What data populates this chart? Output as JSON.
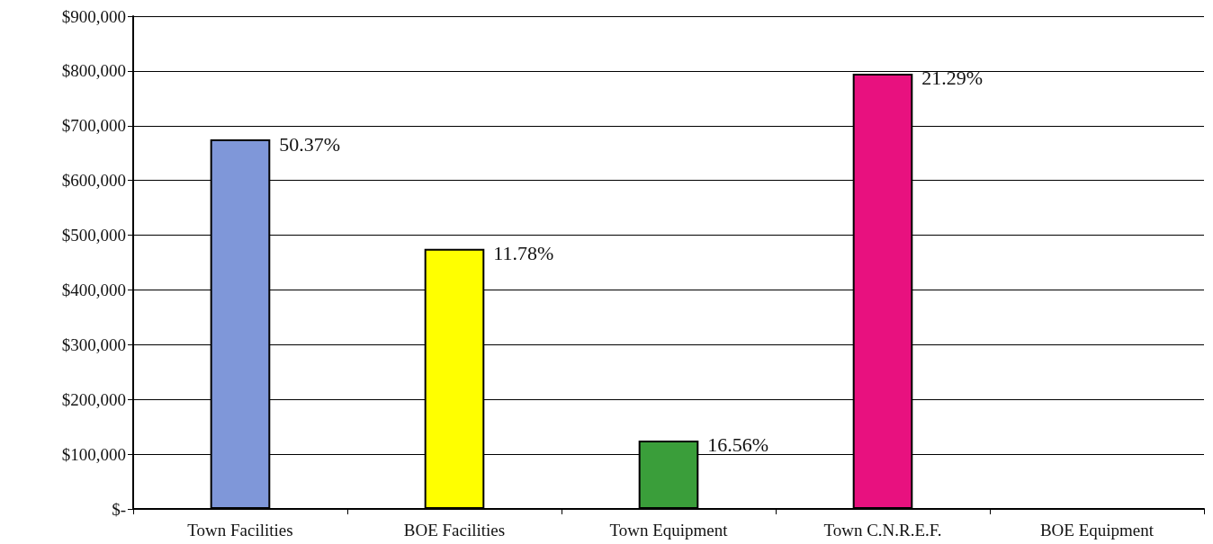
{
  "chart_data": {
    "type": "bar",
    "categories": [
      "Town Facilities",
      "BOE Facilities",
      "Town Equipment",
      "Town C.N.R.E.F.",
      "BOE Equipment"
    ],
    "values": [
      675000,
      475000,
      125000,
      795000,
      null
    ],
    "colors": [
      "#7f97d9",
      "#ffff00",
      "#3a9e3a",
      "#e8117f",
      null
    ],
    "annotations": [
      {
        "text": "50.37%",
        "x": "Town Facilities",
        "y": 675000
      },
      {
        "text": "11.78%",
        "x": "BOE Facilities",
        "y": 475000
      },
      {
        "text": "16.56%",
        "x": "Town Equipment",
        "y": 125000
      },
      {
        "text": "21.29%",
        "x": "Town C.N.R.E.F.",
        "y": 795000
      }
    ],
    "ylim": [
      0,
      900000
    ],
    "yticks": [
      {
        "value": 0,
        "label": "$-"
      },
      {
        "value": 100000,
        "label": "$100,000"
      },
      {
        "value": 200000,
        "label": "$200,000"
      },
      {
        "value": 300000,
        "label": "$300,000"
      },
      {
        "value": 400000,
        "label": "$400,000"
      },
      {
        "value": 500000,
        "label": "$500,000"
      },
      {
        "value": 600000,
        "label": "$600,000"
      },
      {
        "value": 700000,
        "label": "$700,000"
      },
      {
        "value": 800000,
        "label": "$800,000"
      },
      {
        "value": 900000,
        "label": "$900,000"
      }
    ],
    "grid": "y"
  }
}
